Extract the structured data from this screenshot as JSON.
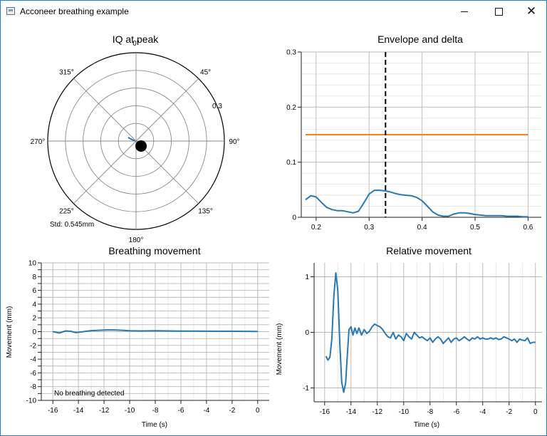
{
  "window": {
    "title": "Acconeer breathing example",
    "minimize_glyph": "minimize-icon",
    "maximize_glyph": "maximize-icon",
    "close_glyph": "✕"
  },
  "colors": {
    "blue": "#2878b4",
    "orange": "#ff7f0e",
    "grid": "#b9b9b9",
    "axis": "#222222"
  },
  "chart_data": [
    {
      "id": "iq",
      "type": "scatter",
      "title": "IQ at peak",
      "angle_labels": [
        "0°",
        "45°",
        "90°",
        "135°",
        "180°",
        "225°",
        "270°",
        "315°"
      ],
      "radius_label": "0.3",
      "rmax": 0.5,
      "rings": [
        0.1,
        0.2,
        0.3,
        0.4,
        0.5
      ],
      "peak_point": {
        "angle_deg": 135,
        "r": 0.04
      },
      "trail": [
        [
          -0.045,
          0.02
        ],
        [
          -0.03,
          0.012
        ],
        [
          -0.015,
          0.005
        ],
        [
          -0.005,
          0.0
        ]
      ],
      "std_text": "Std: 0.545mm"
    },
    {
      "id": "env",
      "type": "line",
      "title": "Envelope and delta",
      "xlim": [
        0.172,
        0.625
      ],
      "ylim": [
        0,
        0.3
      ],
      "xticks": [
        0.2,
        0.3,
        0.4,
        0.5,
        0.6
      ],
      "yticks": [
        0,
        0.1,
        0.2,
        0.3
      ],
      "xtick_labels": [
        "0.2",
        "0.3",
        "0.4",
        "0.5",
        "0.6"
      ],
      "ytick_labels": [
        "0",
        "0.1",
        "0.2",
        "0.3"
      ],
      "marker_x": 0.331,
      "series": [
        {
          "name": "envelope",
          "x": [
            0.18,
            0.19,
            0.2,
            0.21,
            0.22,
            0.23,
            0.24,
            0.25,
            0.26,
            0.27,
            0.28,
            0.29,
            0.3,
            0.31,
            0.32,
            0.33,
            0.34,
            0.35,
            0.36,
            0.37,
            0.38,
            0.39,
            0.4,
            0.41,
            0.42,
            0.43,
            0.44,
            0.45,
            0.46,
            0.47,
            0.48,
            0.49,
            0.5,
            0.51,
            0.52,
            0.53,
            0.54,
            0.55,
            0.56,
            0.57,
            0.58,
            0.59,
            0.6
          ],
          "y": [
            0.032,
            0.039,
            0.037,
            0.027,
            0.018,
            0.014,
            0.012,
            0.012,
            0.01,
            0.008,
            0.011,
            0.026,
            0.042,
            0.049,
            0.049,
            0.048,
            0.046,
            0.043,
            0.041,
            0.04,
            0.039,
            0.036,
            0.03,
            0.02,
            0.01,
            0.004,
            0.002,
            0.002,
            0.006,
            0.008,
            0.008,
            0.007,
            0.005,
            0.004,
            0.003,
            0.003,
            0.003,
            0.003,
            0.002,
            0.002,
            0.002,
            0.001,
            0.001
          ]
        },
        {
          "name": "threshold",
          "x": [
            0.18,
            0.6
          ],
          "y": [
            0.15,
            0.15
          ]
        }
      ]
    },
    {
      "id": "breath",
      "type": "line",
      "title": "Breathing movement",
      "xlabel": "Time (s)",
      "ylabel": "Movement (mm)",
      "xlim": [
        -16.9,
        0.9
      ],
      "ylim": [
        -10,
        10
      ],
      "xticks": [
        -16,
        -14,
        -12,
        -10,
        -8,
        -6,
        -4,
        -2,
        0
      ],
      "yticks": [
        -10,
        -9,
        -8,
        -7,
        -6,
        -5,
        -4,
        -3,
        -2,
        -1,
        0,
        1,
        2,
        3,
        4,
        5,
        6,
        7,
        8,
        9,
        10
      ],
      "xtick_labels": [
        "-16",
        "-14",
        "-12",
        "-10",
        "-8",
        "-6",
        "-4",
        "-2",
        "0"
      ],
      "ytick_labels": [
        "-10",
        "-8",
        "-6",
        "-4",
        "-2",
        "0",
        "2",
        "4",
        "6",
        "8",
        "10"
      ],
      "ytick_label_values": [
        -10,
        -8,
        -6,
        -4,
        -2,
        0,
        2,
        4,
        6,
        8,
        10
      ],
      "annotation": "No breathing detected",
      "series": [
        {
          "name": "breathing",
          "x": [
            -16,
            -15.5,
            -15,
            -14.6,
            -14.2,
            -13.8,
            -13.4,
            -13,
            -12.4,
            -11.8,
            -11.2,
            -10.6,
            -10,
            -9,
            -8,
            -7,
            -6,
            -5,
            -4,
            -3,
            -2,
            -1,
            0
          ],
          "y": [
            0,
            -0.2,
            0.1,
            0.05,
            -0.15,
            -0.05,
            0.05,
            0.15,
            0.2,
            0.25,
            0.25,
            0.2,
            0.12,
            0.1,
            0.12,
            0.1,
            0.08,
            0.08,
            0.06,
            0.05,
            0.05,
            0.04,
            0.03
          ]
        }
      ]
    },
    {
      "id": "rel",
      "type": "line",
      "title": "Relative movement",
      "xlabel": "Time (s)",
      "ylabel": "Movement (mm)",
      "xlim": [
        -16.8,
        0.5
      ],
      "ylim": [
        -1.25,
        1.25
      ],
      "xticks": [
        -16,
        -14,
        -12,
        -10,
        -8,
        -6,
        -4,
        -2,
        0
      ],
      "yticks": [
        -1,
        0,
        1
      ],
      "xtick_labels": [
        "-16",
        "-14",
        "-12",
        "-10",
        "-8",
        "-6",
        "-4",
        "-2",
        "0"
      ],
      "ytick_labels": [
        "-1",
        "0",
        "1"
      ],
      "series": [
        {
          "name": "relative",
          "x": [
            -15.9,
            -15.75,
            -15.6,
            -15.45,
            -15.3,
            -15.15,
            -15,
            -14.85,
            -14.7,
            -14.55,
            -14.4,
            -14.3,
            -14.15,
            -14,
            -13.85,
            -13.7,
            -13.55,
            -13.4,
            -13.2,
            -13,
            -12.8,
            -12.6,
            -12.4,
            -12.2,
            -12,
            -11.8,
            -11.6,
            -11.4,
            -11.2,
            -11,
            -10.8,
            -10.6,
            -10.4,
            -10.2,
            -10,
            -9.8,
            -9.6,
            -9.4,
            -9.2,
            -9,
            -8.8,
            -8.6,
            -8.4,
            -8.2,
            -8,
            -7.8,
            -7.6,
            -7.4,
            -7.2,
            -7,
            -6.8,
            -6.6,
            -6.4,
            -6.2,
            -6,
            -5.8,
            -5.6,
            -5.4,
            -5.2,
            -5,
            -4.8,
            -4.6,
            -4.4,
            -4.2,
            -4,
            -3.8,
            -3.6,
            -3.4,
            -3.2,
            -3,
            -2.8,
            -2.6,
            -2.4,
            -2.2,
            -2,
            -1.8,
            -1.6,
            -1.4,
            -1.2,
            -1,
            -0.8,
            -0.6,
            -0.4,
            -0.2,
            0
          ],
          "y": [
            -0.43,
            -0.5,
            -0.45,
            -0.1,
            0.65,
            1.07,
            0.75,
            -0.2,
            -0.9,
            -1.08,
            -0.9,
            -0.5,
            0.05,
            0.1,
            -0.05,
            0.08,
            -0.02,
            0.08,
            -0.05,
            0.05,
            -0.02,
            0.02,
            0.1,
            0.15,
            0.12,
            0.1,
            0.05,
            -0.02,
            -0.08,
            -0.1,
            0.0,
            -0.12,
            -0.05,
            -0.08,
            -0.15,
            -0.02,
            -0.08,
            -0.12,
            0.0,
            -0.05,
            -0.1,
            -0.08,
            -0.12,
            -0.15,
            -0.1,
            -0.18,
            -0.12,
            -0.08,
            -0.12,
            -0.2,
            -0.15,
            -0.1,
            -0.18,
            -0.12,
            -0.1,
            -0.15,
            -0.12,
            -0.08,
            -0.12,
            -0.15,
            -0.1,
            -0.12,
            -0.08,
            -0.12,
            -0.1,
            -0.12,
            -0.12,
            -0.1,
            -0.12,
            -0.1,
            -0.13,
            -0.12,
            -0.08,
            -0.1,
            -0.12,
            -0.15,
            -0.12,
            -0.18,
            -0.12,
            -0.14,
            -0.15,
            -0.1,
            -0.2,
            -0.18,
            -0.18
          ]
        }
      ]
    }
  ]
}
